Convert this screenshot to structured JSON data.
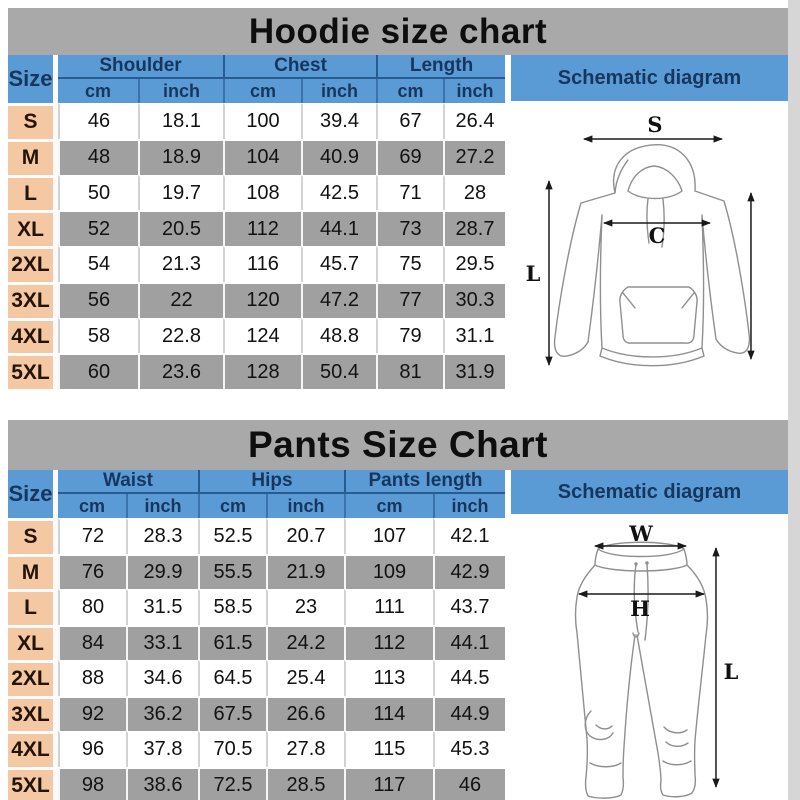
{
  "colors": {
    "title_bar": "#a9a9a9",
    "header_blue": "#5b9bd5",
    "header_text": "#17365d",
    "size_column": "#f5c8a4",
    "row_gray": "#a0a0a0",
    "row_white": "#ffffff",
    "sketch_stroke": "#8f8f8f",
    "dimension_stroke": "#1a1a1a"
  },
  "hoodie_chart": {
    "title": "Hoodie size chart",
    "size_header": "Size",
    "groups": [
      "Shoulder",
      "Chest",
      "Length"
    ],
    "units": [
      "cm",
      "inch"
    ],
    "schematic_title": "Schematic diagram",
    "diagram_labels": {
      "shoulder": "S",
      "chest": "C",
      "length": "L"
    },
    "rows": [
      {
        "size": "S",
        "values": [
          "46",
          "18.1",
          "100",
          "39.4",
          "67",
          "26.4"
        ]
      },
      {
        "size": "M",
        "values": [
          "48",
          "18.9",
          "104",
          "40.9",
          "69",
          "27.2"
        ]
      },
      {
        "size": "L",
        "values": [
          "50",
          "19.7",
          "108",
          "42.5",
          "71",
          "28"
        ]
      },
      {
        "size": "XL",
        "values": [
          "52",
          "20.5",
          "112",
          "44.1",
          "73",
          "28.7"
        ]
      },
      {
        "size": "2XL",
        "values": [
          "54",
          "21.3",
          "116",
          "45.7",
          "75",
          "29.5"
        ]
      },
      {
        "size": "3XL",
        "values": [
          "56",
          "22",
          "120",
          "47.2",
          "77",
          "30.3"
        ]
      },
      {
        "size": "4XL",
        "values": [
          "58",
          "22.8",
          "124",
          "48.8",
          "79",
          "31.1"
        ]
      },
      {
        "size": "5XL",
        "values": [
          "60",
          "23.6",
          "128",
          "50.4",
          "81",
          "31.9"
        ]
      }
    ]
  },
  "pants_chart": {
    "title": "Pants Size Chart",
    "size_header": "Size",
    "groups": [
      "Waist",
      "Hips",
      "Pants length"
    ],
    "units": [
      "cm",
      "inch"
    ],
    "schematic_title": "Schematic diagram",
    "diagram_labels": {
      "waist": "W",
      "hips": "H",
      "length": "L"
    },
    "rows": [
      {
        "size": "S",
        "values": [
          "72",
          "28.3",
          "52.5",
          "20.7",
          "107",
          "42.1"
        ]
      },
      {
        "size": "M",
        "values": [
          "76",
          "29.9",
          "55.5",
          "21.9",
          "109",
          "42.9"
        ]
      },
      {
        "size": "L",
        "values": [
          "80",
          "31.5",
          "58.5",
          "23",
          "111",
          "43.7"
        ]
      },
      {
        "size": "XL",
        "values": [
          "84",
          "33.1",
          "61.5",
          "24.2",
          "112",
          "44.1"
        ]
      },
      {
        "size": "2XL",
        "values": [
          "88",
          "34.6",
          "64.5",
          "25.4",
          "113",
          "44.5"
        ]
      },
      {
        "size": "3XL",
        "values": [
          "92",
          "36.2",
          "67.5",
          "26.6",
          "114",
          "44.9"
        ]
      },
      {
        "size": "4XL",
        "values": [
          "96",
          "37.8",
          "70.5",
          "27.8",
          "115",
          "45.3"
        ]
      },
      {
        "size": "5XL",
        "values": [
          "98",
          "38.6",
          "72.5",
          "28.5",
          "117",
          "46"
        ]
      }
    ]
  },
  "chart_data": [
    {
      "type": "table",
      "title": "Hoodie size chart",
      "columns": [
        "Size",
        "Shoulder (cm)",
        "Shoulder (inch)",
        "Chest (cm)",
        "Chest (inch)",
        "Length (cm)",
        "Length (inch)"
      ],
      "rows": [
        [
          "S",
          46,
          18.1,
          100,
          39.4,
          67,
          26.4
        ],
        [
          "M",
          48,
          18.9,
          104,
          40.9,
          69,
          27.2
        ],
        [
          "L",
          50,
          19.7,
          108,
          42.5,
          71,
          28
        ],
        [
          "XL",
          52,
          20.5,
          112,
          44.1,
          73,
          28.7
        ],
        [
          "2XL",
          54,
          21.3,
          116,
          45.7,
          75,
          29.5
        ],
        [
          "3XL",
          56,
          22,
          120,
          47.2,
          77,
          30.3
        ],
        [
          "4XL",
          58,
          22.8,
          124,
          48.8,
          79,
          31.1
        ],
        [
          "5XL",
          60,
          23.6,
          128,
          50.4,
          81,
          31.9
        ]
      ]
    },
    {
      "type": "table",
      "title": "Pants Size Chart",
      "columns": [
        "Size",
        "Waist (cm)",
        "Waist (inch)",
        "Hips (cm)",
        "Hips (inch)",
        "Pants length (cm)",
        "Pants length (inch)"
      ],
      "rows": [
        [
          "S",
          72,
          28.3,
          52.5,
          20.7,
          107,
          42.1
        ],
        [
          "M",
          76,
          29.9,
          55.5,
          21.9,
          109,
          42.9
        ],
        [
          "L",
          80,
          31.5,
          58.5,
          23,
          111,
          43.7
        ],
        [
          "XL",
          84,
          33.1,
          61.5,
          24.2,
          112,
          44.1
        ],
        [
          "2XL",
          88,
          34.6,
          64.5,
          25.4,
          113,
          44.5
        ],
        [
          "3XL",
          92,
          36.2,
          67.5,
          26.6,
          114,
          44.9
        ],
        [
          "4XL",
          96,
          37.8,
          70.5,
          27.8,
          115,
          45.3
        ],
        [
          "5XL",
          98,
          38.6,
          72.5,
          28.5,
          117,
          46
        ]
      ]
    }
  ]
}
